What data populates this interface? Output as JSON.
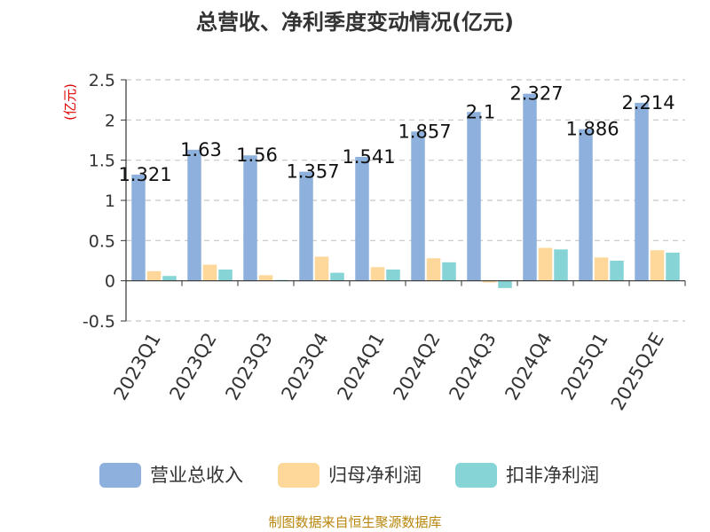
{
  "chart_data": {
    "type": "bar",
    "title": "总营收、净利季度变动情况(亿元)",
    "unit_label": "(亿元)",
    "categories": [
      "2023Q1",
      "2023Q2",
      "2023Q3",
      "2023Q4",
      "2024Q1",
      "2024Q2",
      "2024Q3",
      "2024Q4",
      "2025Q1",
      "2025Q2E"
    ],
    "series": [
      {
        "name": "营业总收入",
        "color": "#8eb0dc",
        "values": [
          1.321,
          1.63,
          1.56,
          1.357,
          1.541,
          1.857,
          2.1,
          2.327,
          1.886,
          2.214
        ]
      },
      {
        "name": "归母净利润",
        "color": "#fdd89a",
        "values": [
          0.12,
          0.2,
          0.07,
          0.3,
          0.17,
          0.28,
          -0.02,
          0.41,
          0.29,
          0.38
        ]
      },
      {
        "name": "扣非净利润",
        "color": "#86d4d5",
        "values": [
          0.06,
          0.14,
          0.01,
          0.1,
          0.14,
          0.23,
          -0.09,
          0.39,
          0.25,
          0.35
        ]
      }
    ],
    "data_labels": [
      "1.321",
      "1.63",
      "1.56",
      "1.357",
      "1.541",
      "1.857",
      "2.1",
      "2.327",
      "1.886",
      "2.214"
    ],
    "yticks": [
      "2.5",
      "2",
      "1.5",
      "1",
      "0.5",
      "0",
      "-0.5"
    ],
    "ylim": [
      -0.5,
      2.5
    ],
    "grid": true,
    "legend_position": "bottom"
  },
  "footer": "制图数据来自恒生聚源数据库"
}
